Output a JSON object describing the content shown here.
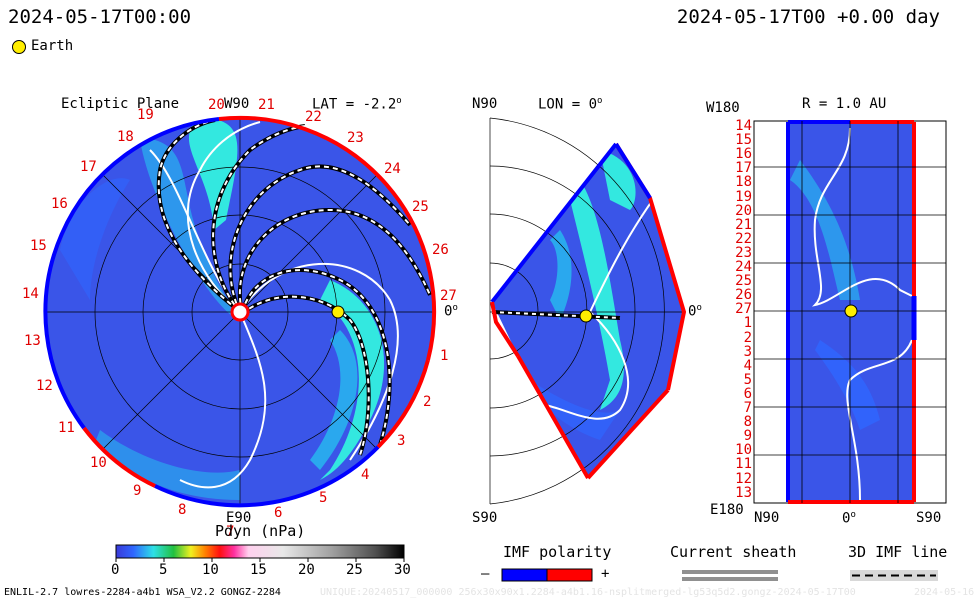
{
  "header": {
    "left_time": "2024-05-17T00:00",
    "right_time": "2024-05-17T00 +0.00 day"
  },
  "legend_earth": "Earth",
  "colors": {
    "earth": "#ffee00",
    "imf_negative": "#0000ff",
    "imf_positive": "#ff0000",
    "sheath": "#909090",
    "background_field": "#3a55e8",
    "stream": "#33e8e0"
  },
  "panel_ecliptic": {
    "title": "Ecliptic Plane",
    "top_label": "W90",
    "bottom_label": "E90",
    "right_label": "0",
    "lat_label": "LAT = -2.2",
    "carrington_numbers": [
      "19",
      "20",
      "21",
      "22",
      "23",
      "24",
      "25",
      "26",
      "27",
      "1",
      "2",
      "3",
      "4",
      "5",
      "6",
      "7",
      "8",
      "9",
      "10",
      "11",
      "12",
      "13",
      "14",
      "15",
      "16",
      "17",
      "18"
    ]
  },
  "panel_meridional": {
    "top_label": "N90",
    "bottom_label": "S90",
    "lon_label": "LON = 0",
    "right_label": "0"
  },
  "panel_sphere": {
    "top_left_label": "W180",
    "bottom_left_label": "E180",
    "title": "R = 1.0 AU",
    "x_labels": [
      "N90",
      "0",
      "S90"
    ],
    "rows": [
      "14",
      "15",
      "16",
      "17",
      "18",
      "19",
      "20",
      "21",
      "22",
      "23",
      "24",
      "25",
      "26",
      "27",
      "1",
      "2",
      "3",
      "4",
      "5",
      "6",
      "7",
      "8",
      "9",
      "10",
      "11",
      "12",
      "13"
    ]
  },
  "colorbar": {
    "title": "Pdyn (nPa)",
    "ticks": [
      "0",
      "5",
      "10",
      "15",
      "20",
      "25",
      "30"
    ],
    "min": 0,
    "max": 30
  },
  "legend_imf": {
    "title": "IMF polarity",
    "minus": "–",
    "plus": "+"
  },
  "legend_sheath": {
    "title": "Current sheath"
  },
  "legend_imf_line": {
    "title": "3D IMF line"
  },
  "footer": {
    "left": "ENLIL-2.7 lowres-2284-a4b1 WSA_V2.2 GONGZ-2284",
    "watermark": "UNIQUE:20240517_000000 256x30x90x1.2284-a4b1.16-nsplitmerged-lg53q5d2.gongz-2024-05-17T00",
    "right_stub": "2024-05-16"
  },
  "chart_data": {
    "type": "heatmap",
    "title": "",
    "quantity": "Pdyn (nPa)",
    "color_range": [
      0,
      30
    ],
    "earth_position": {
      "lon_deg": 0,
      "r_au": 1.0
    },
    "notes_visible": [
      "Ecliptic Plane",
      "LAT = -2.2",
      "LON = 0",
      "R = 1.0 AU"
    ]
  }
}
